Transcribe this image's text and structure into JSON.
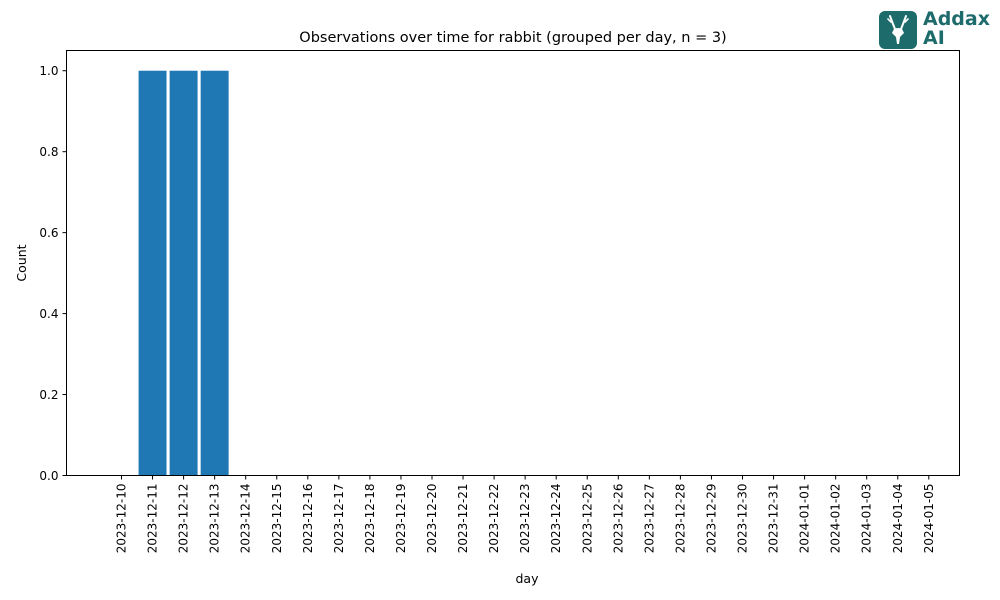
{
  "chart_data": {
    "type": "bar",
    "title": "Observations over time for rabbit (grouped per day, n = 3)",
    "xlabel": "day",
    "ylabel": "Count",
    "ylim": [
      0,
      1.05
    ],
    "yticks": [
      "0.0",
      "0.2",
      "0.4",
      "0.6",
      "0.8",
      "1.0"
    ],
    "categories": [
      "2023-12-10",
      "2023-12-11",
      "2023-12-12",
      "2023-12-13",
      "2023-12-14",
      "2023-12-15",
      "2023-12-16",
      "2023-12-17",
      "2023-12-18",
      "2023-12-19",
      "2023-12-20",
      "2023-12-21",
      "2023-12-22",
      "2023-12-23",
      "2023-12-24",
      "2023-12-25",
      "2023-12-26",
      "2023-12-27",
      "2023-12-28",
      "2023-12-29",
      "2023-12-30",
      "2023-12-31",
      "2024-01-01",
      "2024-01-02",
      "2024-01-03",
      "2024-01-04",
      "2024-01-05"
    ],
    "values": [
      0,
      1,
      1,
      1,
      0,
      0,
      0,
      0,
      0,
      0,
      0,
      0,
      0,
      0,
      0,
      0,
      0,
      0,
      0,
      0,
      0,
      0,
      0,
      0,
      0,
      0,
      0
    ],
    "bar_color": "#1f77b4",
    "grid": false
  },
  "logo": {
    "line1": "Addax",
    "line2": "AI",
    "color": "#1e6b6b"
  }
}
